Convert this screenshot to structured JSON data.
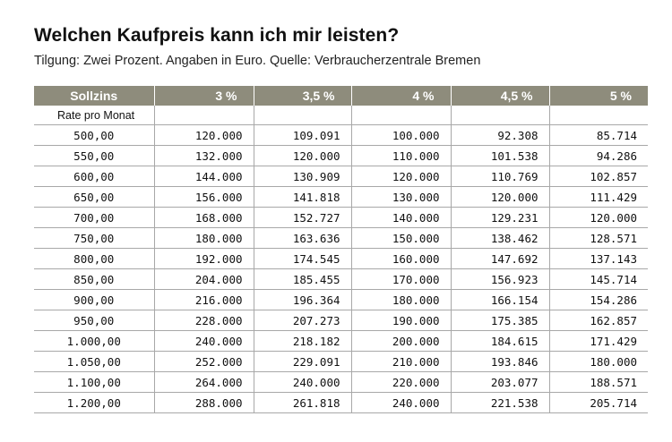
{
  "title": "Welchen Kaufpreis kann ich mir leisten?",
  "subtitle": "Tilgung: Zwei Prozent. Angaben in Euro. Quelle: Verbraucherzentrale Bremen",
  "table": {
    "header": [
      "Sollzins",
      "3 %",
      "3,5 %",
      "4 %",
      "4,5 %",
      "5 %"
    ],
    "subheader": "Rate pro Monat",
    "rows": [
      [
        "500,00",
        "120.000",
        "109.091",
        "100.000",
        "92.308",
        "85.714"
      ],
      [
        "550,00",
        "132.000",
        "120.000",
        "110.000",
        "101.538",
        "94.286"
      ],
      [
        "600,00",
        "144.000",
        "130.909",
        "120.000",
        "110.769",
        "102.857"
      ],
      [
        "650,00",
        "156.000",
        "141.818",
        "130.000",
        "120.000",
        "111.429"
      ],
      [
        "700,00",
        "168.000",
        "152.727",
        "140.000",
        "129.231",
        "120.000"
      ],
      [
        "750,00",
        "180.000",
        "163.636",
        "150.000",
        "138.462",
        "128.571"
      ],
      [
        "800,00",
        "192.000",
        "174.545",
        "160.000",
        "147.692",
        "137.143"
      ],
      [
        "850,00",
        "204.000",
        "185.455",
        "170.000",
        "156.923",
        "145.714"
      ],
      [
        "900,00",
        "216.000",
        "196.364",
        "180.000",
        "166.154",
        "154.286"
      ],
      [
        "950,00",
        "228.000",
        "207.273",
        "190.000",
        "175.385",
        "162.857"
      ],
      [
        "1.000,00",
        "240.000",
        "218.182",
        "200.000",
        "184.615",
        "171.429"
      ],
      [
        "1.050,00",
        "252.000",
        "229.091",
        "210.000",
        "193.846",
        "180.000"
      ],
      [
        "1.100,00",
        "264.000",
        "240.000",
        "220.000",
        "203.077",
        "188.571"
      ],
      [
        "1.200,00",
        "288.000",
        "261.818",
        "240.000",
        "221.538",
        "205.714"
      ]
    ]
  },
  "colors": {
    "header_bg": "#8e8c7c",
    "header_text": "#ffffff",
    "grid_line": "#a8a8a8",
    "text": "#111111"
  }
}
